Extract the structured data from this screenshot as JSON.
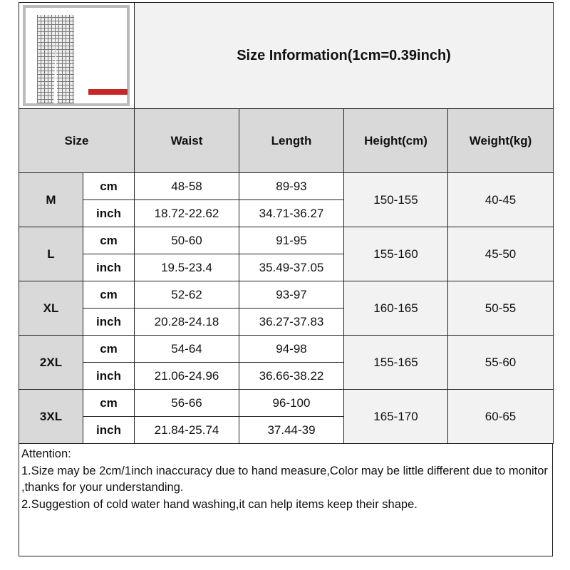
{
  "title": "Size Information(1cm=0.39inch)",
  "image": {
    "alt": "checked-pants-product-photo",
    "tag_color": "#c62828"
  },
  "headers": {
    "size": "Size",
    "waist": "Waist",
    "length": "Length",
    "height": "Height(cm)",
    "weight": "Weight(kg)"
  },
  "rows": [
    {
      "size": "M",
      "cm_label": "cm",
      "inch_label": "inch",
      "waist_cm": "48-58",
      "length_cm": "89-93",
      "waist_inch": "18.72-22.62",
      "length_inch": "34.71-36.27",
      "height": "150-155",
      "weight": "40-45"
    },
    {
      "size": "L",
      "cm_label": "cm",
      "inch_label": "inch",
      "waist_cm": "50-60",
      "length_cm": "91-95",
      "waist_inch": "19.5-23.4",
      "length_inch": "35.49-37.05",
      "height": "155-160",
      "weight": "45-50"
    },
    {
      "size": "XL",
      "cm_label": "cm",
      "inch_label": "inch",
      "waist_cm": "52-62",
      "length_cm": "93-97",
      "waist_inch": "20.28-24.18",
      "length_inch": "36.27-37.83",
      "height": "160-165",
      "weight": "50-55"
    },
    {
      "size": "2XL",
      "cm_label": "cm",
      "inch_label": "inch",
      "waist_cm": "54-64",
      "length_cm": "94-98",
      "waist_inch": "21.06-24.96",
      "length_inch": "36.66-38.22",
      "height": "155-165",
      "weight": "55-60"
    },
    {
      "size": "3XL",
      "cm_label": "cm",
      "inch_label": "inch",
      "waist_cm": "56-66",
      "length_cm": "96-100",
      "waist_inch": "21.84-25.74",
      "length_inch": "37.44-39",
      "height": "165-170",
      "weight": "60-65"
    }
  ],
  "notes": {
    "heading": "Attention:",
    "line1": "1.Size may be 2cm/1inch inaccuracy due to hand measure,Color may be little different due to monitor ,thanks for your understanding.",
    "line2": "2.Suggestion of cold water hand washing,it can help items keep their shape."
  }
}
